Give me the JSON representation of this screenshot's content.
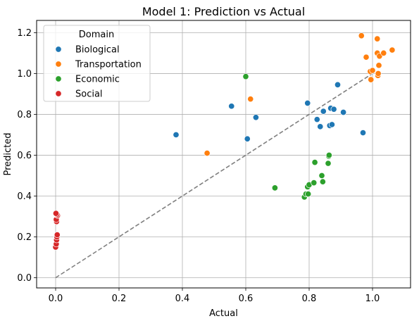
{
  "chart_data": {
    "type": "scatter",
    "title": "Model 1: Prediction vs Actual",
    "xlabel": "Actual",
    "ylabel": "Predicted",
    "xlim": [
      -0.06,
      1.12
    ],
    "ylim": [
      -0.05,
      1.26
    ],
    "xticks": [
      0.0,
      0.2,
      0.4,
      0.6,
      0.8,
      1.0
    ],
    "xtick_labels": [
      "0.0",
      "0.2",
      "0.4",
      "0.6",
      "0.8",
      "1.0"
    ],
    "yticks": [
      0.0,
      0.2,
      0.4,
      0.6,
      0.8,
      1.0,
      1.2
    ],
    "ytick_labels": [
      "0.0",
      "0.2",
      "0.4",
      "0.6",
      "0.8",
      "1.0",
      "1.2"
    ],
    "grid": true,
    "legend": {
      "title": "Domain",
      "placement": "top-left"
    },
    "reference_line": {
      "from": [
        0,
        0
      ],
      "to": [
        1.0,
        1.0
      ],
      "style": "dashed",
      "color": "#808080"
    },
    "series": [
      {
        "name": "Biological",
        "color": "#1f77b4",
        "x": [
          0.38,
          0.555,
          0.605,
          0.632,
          0.795,
          0.825,
          0.835,
          0.845,
          0.865,
          0.868,
          0.872,
          0.878,
          0.89,
          0.908,
          0.97
        ],
        "y": [
          0.7,
          0.84,
          0.68,
          0.785,
          0.855,
          0.775,
          0.74,
          0.815,
          0.745,
          0.83,
          0.75,
          0.825,
          0.945,
          0.81,
          0.71
        ]
      },
      {
        "name": "Transportation",
        "color": "#ff7f0e",
        "x": [
          0.478,
          0.615,
          0.965,
          0.98,
          0.993,
          0.995,
          1.0,
          1.015,
          1.015,
          1.017,
          1.018,
          1.02,
          1.022,
          1.035,
          1.062
        ],
        "y": [
          0.61,
          0.875,
          1.185,
          1.08,
          1.01,
          0.97,
          1.015,
          1.1,
          1.17,
          0.99,
          1.0,
          1.04,
          1.085,
          1.1,
          1.115
        ]
      },
      {
        "name": "Economic",
        "color": "#2ca02c",
        "x": [
          0.6,
          0.692,
          0.785,
          0.79,
          0.795,
          0.797,
          0.8,
          0.815,
          0.818,
          0.84,
          0.843,
          0.86,
          0.862,
          0.863
        ],
        "y": [
          0.985,
          0.44,
          0.395,
          0.41,
          0.445,
          0.41,
          0.455,
          0.465,
          0.565,
          0.5,
          0.47,
          0.56,
          0.595,
          0.6
        ]
      },
      {
        "name": "Social",
        "color": "#d62728",
        "x": [
          0.0,
          0.002,
          0.003,
          0.004,
          0.005,
          0.003,
          0.002,
          0.006,
          0.004,
          0.001
        ],
        "y": [
          0.15,
          0.165,
          0.185,
          0.2,
          0.21,
          0.275,
          0.285,
          0.305,
          0.31,
          0.315
        ]
      }
    ]
  }
}
